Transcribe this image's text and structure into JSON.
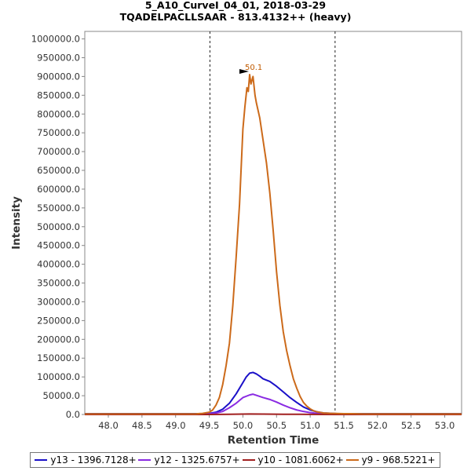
{
  "chart_data": {
    "type": "line",
    "title": "5_A10_CurveI_04_01, 2018-03-29",
    "subtitle": "TQADELPACLLSAAR - 813.4132++ (heavy)",
    "xlabel": "Retention Time",
    "ylabel": "Intensity",
    "xlim": [
      47.65,
      53.25
    ],
    "ylim": [
      0,
      1020000
    ],
    "xticks": [
      48.0,
      48.5,
      49.0,
      49.5,
      50.0,
      50.5,
      51.0,
      51.5,
      52.0,
      52.5,
      53.0
    ],
    "xtick_labels": [
      "48.0",
      "48.5",
      "49.0",
      "49.5",
      "50.0",
      "50.5",
      "51.0",
      "51.5",
      "52.0",
      "52.5",
      "53.0"
    ],
    "yticks": [
      0,
      50000,
      100000,
      150000,
      200000,
      250000,
      300000,
      350000,
      400000,
      450000,
      500000,
      550000,
      600000,
      650000,
      700000,
      750000,
      800000,
      850000,
      900000,
      950000,
      1000000
    ],
    "ytick_labels": [
      "0.0",
      "50000.0",
      "100000.0",
      "150000.0",
      "200000.0",
      "250000.0",
      "300000.0",
      "350000.0",
      "400000.0",
      "450000.0",
      "500000.0",
      "550000.0",
      "600000.0",
      "650000.0",
      "700000.0",
      "750000.0",
      "800000.0",
      "850000.0",
      "900000.0",
      "950000.0",
      "1000000.0"
    ],
    "grid": false,
    "legend_position": "bottom",
    "integration_bounds": [
      49.51,
      51.37
    ],
    "annotation": {
      "label": "50.1",
      "x": 50.1,
      "y": 905000,
      "color": "#c05a00"
    },
    "series": [
      {
        "name": "y13 - 1396.7128+",
        "color": "#1a10c8",
        "x": [
          47.65,
          49.4,
          49.5,
          49.6,
          49.7,
          49.8,
          49.9,
          50.0,
          50.05,
          50.1,
          50.15,
          50.2,
          50.25,
          50.3,
          50.4,
          50.5,
          50.6,
          50.7,
          50.8,
          50.9,
          51.0,
          51.1,
          51.2,
          51.3,
          51.4,
          51.6,
          52.0,
          53.25
        ],
        "y": [
          2000,
          2000,
          3000,
          6000,
          14000,
          30000,
          55000,
          85000,
          100000,
          110000,
          112000,
          108000,
          102000,
          95000,
          88000,
          75000,
          60000,
          45000,
          32000,
          20000,
          12000,
          7000,
          4000,
          3000,
          2000,
          2000,
          2000,
          2000
        ]
      },
      {
        "name": "y12 - 1325.6757+",
        "color": "#8a2be2",
        "x": [
          47.65,
          49.4,
          49.5,
          49.6,
          49.7,
          49.8,
          49.9,
          50.0,
          50.1,
          50.15,
          50.2,
          50.3,
          50.4,
          50.5,
          50.6,
          50.7,
          50.8,
          50.9,
          51.0,
          51.1,
          51.2,
          51.4,
          52.0,
          53.25
        ],
        "y": [
          1000,
          1000,
          2000,
          4000,
          8000,
          18000,
          30000,
          45000,
          52000,
          54000,
          51000,
          45000,
          40000,
          33000,
          25000,
          18000,
          12000,
          8000,
          5000,
          3000,
          2000,
          1000,
          1000,
          1000
        ]
      },
      {
        "name": "y10 - 1081.6062+",
        "color": "#a11f1f",
        "x": [
          47.65,
          49.5,
          49.8,
          50.0,
          50.1,
          50.3,
          50.6,
          51.0,
          51.4,
          53.25
        ],
        "y": [
          0,
          0,
          500,
          1000,
          1200,
          1000,
          600,
          300,
          0,
          0
        ]
      },
      {
        "name": "y9 - 968.5221+",
        "color": "#cc6a1a",
        "x": [
          47.65,
          49.3,
          49.4,
          49.5,
          49.55,
          49.6,
          49.65,
          49.7,
          49.75,
          49.8,
          49.85,
          49.9,
          49.95,
          49.98,
          50.0,
          50.03,
          50.06,
          50.08,
          50.1,
          50.12,
          50.15,
          50.18,
          50.2,
          50.25,
          50.3,
          50.35,
          50.4,
          50.45,
          50.5,
          50.55,
          50.6,
          50.65,
          50.7,
          50.75,
          50.8,
          50.85,
          50.9,
          50.95,
          51.0,
          51.05,
          51.1,
          51.2,
          51.3,
          51.4,
          51.5,
          51.6,
          51.8,
          52.0,
          53.25
        ],
        "y": [
          1500,
          1500,
          3000,
          6000,
          12000,
          25000,
          45000,
          80000,
          130000,
          190000,
          290000,
          420000,
          560000,
          680000,
          760000,
          820000,
          870000,
          860000,
          905000,
          880000,
          900000,
          850000,
          830000,
          790000,
          730000,
          670000,
          590000,
          490000,
          380000,
          290000,
          220000,
          170000,
          130000,
          95000,
          70000,
          48000,
          32000,
          22000,
          15000,
          10000,
          7000,
          4000,
          3000,
          2500,
          2000,
          2000,
          1500,
          1500,
          1500
        ]
      }
    ]
  }
}
